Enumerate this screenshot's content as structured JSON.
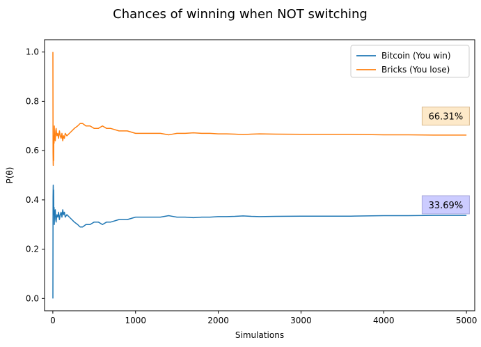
{
  "chart_data": {
    "type": "line",
    "title": "Chances of winning when NOT switching",
    "xlabel": "Simulations",
    "ylabel": "P(θ)",
    "xlim": [
      -100,
      5100
    ],
    "ylim": [
      -0.05,
      1.05
    ],
    "xticks": [
      0,
      1000,
      2000,
      3000,
      4000,
      5000
    ],
    "yticks": [
      0.0,
      0.2,
      0.4,
      0.6,
      0.8,
      1.0
    ],
    "xtick_labels": [
      "0",
      "1000",
      "2000",
      "3000",
      "4000",
      "5000"
    ],
    "ytick_labels": [
      "0.0",
      "0.2",
      "0.4",
      "0.6",
      "0.8",
      "1.0"
    ],
    "grid": false,
    "legend_position": "top-right",
    "series": [
      {
        "name": "Bitcoin (You win)",
        "color": "#1f77b4",
        "x": [
          1,
          3,
          5,
          8,
          10,
          12,
          15,
          18,
          20,
          25,
          30,
          35,
          40,
          45,
          50,
          60,
          70,
          80,
          90,
          100,
          110,
          120,
          130,
          140,
          150,
          170,
          200,
          230,
          260,
          300,
          330,
          360,
          400,
          450,
          500,
          550,
          600,
          650,
          700,
          800,
          900,
          1000,
          1100,
          1200,
          1300,
          1400,
          1450,
          1500,
          1600,
          1700,
          1800,
          1900,
          2000,
          2100,
          2200,
          2300,
          2400,
          2500,
          2700,
          3000,
          3300,
          3600,
          4000,
          4300,
          4600,
          5000
        ],
        "y": [
          0.0,
          0.41,
          0.46,
          0.38,
          0.44,
          0.34,
          0.37,
          0.3,
          0.33,
          0.35,
          0.36,
          0.32,
          0.31,
          0.33,
          0.34,
          0.33,
          0.35,
          0.32,
          0.34,
          0.35,
          0.33,
          0.36,
          0.34,
          0.35,
          0.33,
          0.34,
          0.33,
          0.32,
          0.31,
          0.3,
          0.29,
          0.29,
          0.3,
          0.3,
          0.31,
          0.31,
          0.3,
          0.31,
          0.31,
          0.32,
          0.32,
          0.33,
          0.33,
          0.33,
          0.33,
          0.336,
          0.333,
          0.33,
          0.33,
          0.328,
          0.33,
          0.33,
          0.332,
          0.332,
          0.333,
          0.335,
          0.333,
          0.332,
          0.333,
          0.334,
          0.334,
          0.334,
          0.336,
          0.336,
          0.337,
          0.3369
        ]
      },
      {
        "name": "Bricks (You lose)",
        "color": "#ff7f0e",
        "x": [
          1,
          3,
          5,
          8,
          10,
          12,
          15,
          18,
          20,
          25,
          30,
          35,
          40,
          45,
          50,
          60,
          70,
          80,
          90,
          100,
          110,
          120,
          130,
          140,
          150,
          170,
          200,
          230,
          260,
          300,
          330,
          360,
          400,
          450,
          500,
          550,
          600,
          650,
          700,
          800,
          900,
          1000,
          1100,
          1200,
          1300,
          1400,
          1450,
          1500,
          1600,
          1700,
          1800,
          1900,
          2000,
          2100,
          2200,
          2300,
          2400,
          2500,
          2700,
          3000,
          3300,
          3600,
          4000,
          4300,
          4600,
          5000
        ],
        "y": [
          1.0,
          0.59,
          0.54,
          0.62,
          0.56,
          0.66,
          0.63,
          0.7,
          0.67,
          0.65,
          0.64,
          0.68,
          0.69,
          0.67,
          0.66,
          0.67,
          0.65,
          0.68,
          0.66,
          0.65,
          0.67,
          0.64,
          0.66,
          0.65,
          0.67,
          0.66,
          0.67,
          0.68,
          0.69,
          0.7,
          0.71,
          0.71,
          0.7,
          0.7,
          0.69,
          0.69,
          0.7,
          0.69,
          0.69,
          0.68,
          0.68,
          0.67,
          0.67,
          0.67,
          0.67,
          0.664,
          0.667,
          0.67,
          0.67,
          0.672,
          0.67,
          0.67,
          0.668,
          0.668,
          0.667,
          0.665,
          0.667,
          0.668,
          0.667,
          0.666,
          0.666,
          0.666,
          0.664,
          0.664,
          0.663,
          0.6631
        ]
      }
    ],
    "annotations": [
      {
        "text": "66.31%",
        "x": 4750,
        "y": 0.74,
        "box_color": "#fde9c9",
        "border_color": "#d9b98f"
      },
      {
        "text": "33.69%",
        "x": 4750,
        "y": 0.38,
        "box_color": "#ccccff",
        "border_color": "#aaaadd"
      }
    ]
  }
}
